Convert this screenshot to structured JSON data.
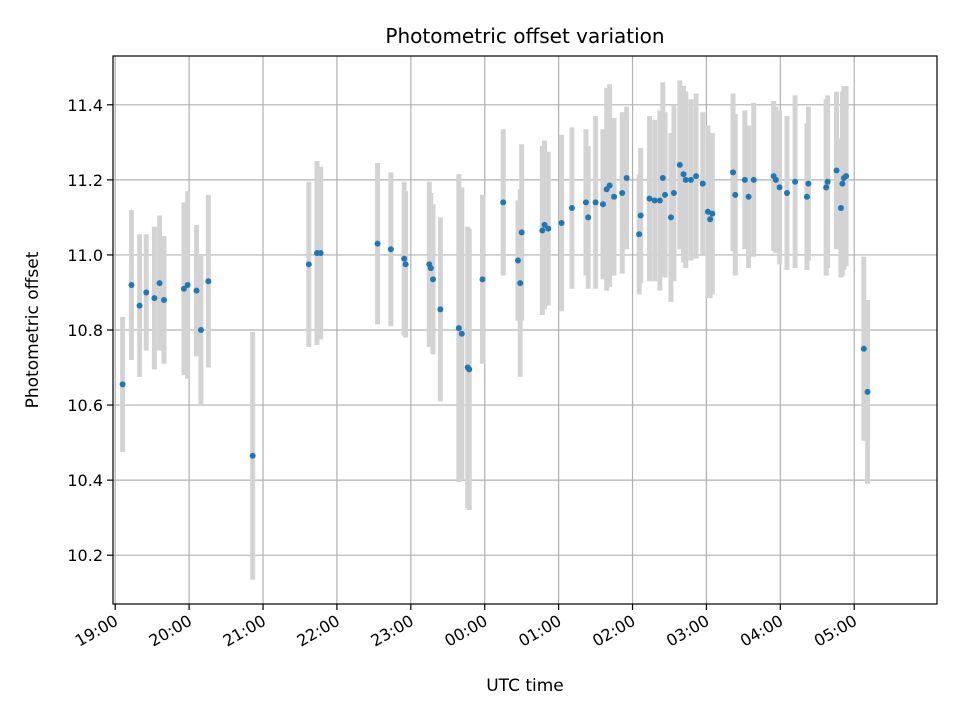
{
  "chart_data": {
    "type": "scatter",
    "title": "Photometric offset variation",
    "xlabel": "UTC time",
    "ylabel": "Photometric offset",
    "x_ticks": [
      "19:00",
      "20:00",
      "21:00",
      "22:00",
      "23:00",
      "00:00",
      "01:00",
      "02:00",
      "03:00",
      "04:00",
      "05:00"
    ],
    "x_tick_hours": [
      19,
      20,
      21,
      22,
      23,
      24,
      25,
      26,
      27,
      28,
      29
    ],
    "xlim_hours": [
      18.97,
      30.12
    ],
    "y_ticks": [
      "10.2",
      "10.4",
      "10.6",
      "10.8",
      "11.0",
      "11.2",
      "11.4"
    ],
    "ylim": [
      10.07,
      11.53
    ],
    "grid": true,
    "colors": {
      "point": "#1f77b4",
      "errorbar": "#d3d3d3",
      "grid": "#b0b0b0"
    },
    "series": [
      {
        "points": [
          [
            19.1,
            10.655,
            0.18
          ],
          [
            19.22,
            10.92,
            0.2
          ],
          [
            19.33,
            10.865,
            0.19
          ],
          [
            19.42,
            10.9,
            0.155
          ],
          [
            19.53,
            10.885,
            0.19
          ],
          [
            19.6,
            10.925,
            0.18
          ],
          [
            19.66,
            10.88,
            0.17
          ],
          [
            19.93,
            10.91,
            0.23
          ],
          [
            19.98,
            10.92,
            0.25
          ],
          [
            20.1,
            10.905,
            0.175
          ],
          [
            20.16,
            10.8,
            0.2
          ],
          [
            20.26,
            10.93,
            0.23
          ],
          [
            20.86,
            10.465,
            0.33
          ],
          [
            21.62,
            10.975,
            0.22
          ],
          [
            21.73,
            11.005,
            0.245
          ],
          [
            21.78,
            11.005,
            0.23
          ],
          [
            22.55,
            11.03,
            0.215
          ],
          [
            22.73,
            11.015,
            0.205
          ],
          [
            22.91,
            10.99,
            0.205
          ],
          [
            22.93,
            10.975,
            0.195
          ],
          [
            23.25,
            10.975,
            0.22
          ],
          [
            23.27,
            10.965,
            0.2
          ],
          [
            23.3,
            10.935,
            0.2
          ],
          [
            23.4,
            10.855,
            0.245
          ],
          [
            23.65,
            10.805,
            0.41
          ],
          [
            23.69,
            10.79,
            0.39
          ],
          [
            23.77,
            10.7,
            0.375
          ],
          [
            23.79,
            10.695,
            0.375
          ],
          [
            23.97,
            10.935,
            0.225
          ],
          [
            24.25,
            11.14,
            0.195
          ],
          [
            24.45,
            10.985,
            0.16
          ],
          [
            24.48,
            10.925,
            0.25
          ],
          [
            24.5,
            11.06,
            0.235
          ],
          [
            24.78,
            11.065,
            0.225
          ],
          [
            24.81,
            11.08,
            0.225
          ],
          [
            24.86,
            11.07,
            0.205
          ],
          [
            25.04,
            11.085,
            0.235
          ],
          [
            25.18,
            11.125,
            0.215
          ],
          [
            25.37,
            11.14,
            0.195
          ],
          [
            25.4,
            11.1,
            0.19
          ],
          [
            25.5,
            11.14,
            0.23
          ],
          [
            25.6,
            11.135,
            0.2
          ],
          [
            25.65,
            11.175,
            0.27
          ],
          [
            25.69,
            11.185,
            0.27
          ],
          [
            25.75,
            11.155,
            0.21
          ],
          [
            25.86,
            11.165,
            0.215
          ],
          [
            25.92,
            11.205,
            0.19
          ],
          [
            26.09,
            11.055,
            0.16
          ],
          [
            26.11,
            11.105,
            0.18
          ],
          [
            26.23,
            11.15,
            0.22
          ],
          [
            26.3,
            11.145,
            0.215
          ],
          [
            26.37,
            11.145,
            0.24
          ],
          [
            26.41,
            11.205,
            0.255
          ],
          [
            26.44,
            11.16,
            0.22
          ],
          [
            26.52,
            11.1,
            0.225
          ],
          [
            26.56,
            11.165,
            0.235
          ],
          [
            26.64,
            11.24,
            0.225
          ],
          [
            26.69,
            11.215,
            0.235
          ],
          [
            26.72,
            11.2,
            0.235
          ],
          [
            26.79,
            11.2,
            0.215
          ],
          [
            26.86,
            11.21,
            0.22
          ],
          [
            26.95,
            11.19,
            0.19
          ],
          [
            27.02,
            11.115,
            0.23
          ],
          [
            27.05,
            11.095,
            0.21
          ],
          [
            27.08,
            11.11,
            0.215
          ],
          [
            27.36,
            11.22,
            0.21
          ],
          [
            27.39,
            11.16,
            0.215
          ],
          [
            27.52,
            11.2,
            0.185
          ],
          [
            27.57,
            11.155,
            0.19
          ],
          [
            27.64,
            11.2,
            0.205
          ],
          [
            27.91,
            11.21,
            0.2
          ],
          [
            27.94,
            11.2,
            0.195
          ],
          [
            27.99,
            11.18,
            0.205
          ],
          [
            28.09,
            11.165,
            0.205
          ],
          [
            28.2,
            11.195,
            0.23
          ],
          [
            28.36,
            11.155,
            0.195
          ],
          [
            28.38,
            11.19,
            0.205
          ],
          [
            28.62,
            11.18,
            0.235
          ],
          [
            28.64,
            11.195,
            0.23
          ],
          [
            28.76,
            11.225,
            0.21
          ],
          [
            28.82,
            11.125,
            0.185
          ],
          [
            28.84,
            11.19,
            0.245
          ],
          [
            28.86,
            11.205,
            0.245
          ],
          [
            28.89,
            11.21,
            0.24
          ],
          [
            29.13,
            10.75,
            0.245
          ],
          [
            29.18,
            10.635,
            0.245
          ]
        ]
      }
    ]
  }
}
